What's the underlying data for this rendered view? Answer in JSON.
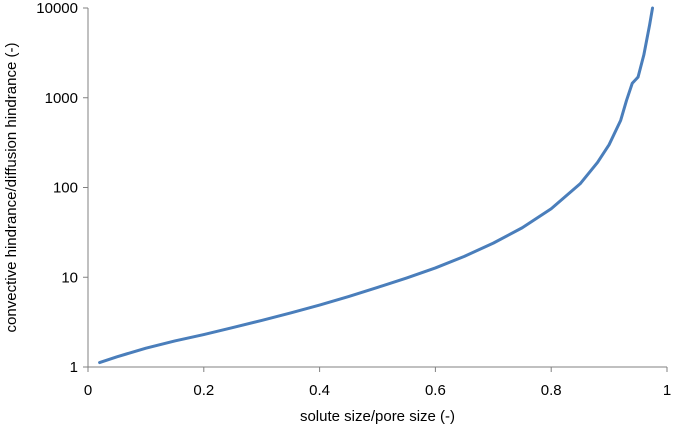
{
  "chart_data": {
    "type": "line",
    "title": "",
    "xlabel": "solute size/pore size (-)",
    "ylabel": "convective hindrance/diffusion hindrance (-)",
    "xlim": [
      0,
      1
    ],
    "ylim": [
      1,
      10000
    ],
    "yscale": "log",
    "grid": false,
    "legend": "none",
    "x_ticks": [
      "0",
      "0.2",
      "0.4",
      "0.6",
      "0.8",
      "1"
    ],
    "y_ticks": [
      "1",
      "10",
      "100",
      "1000",
      "10000"
    ],
    "line_color": "#4a7ebb",
    "series": [
      {
        "x": [
          0.02,
          0.05,
          0.1,
          0.15,
          0.2,
          0.25,
          0.3,
          0.35,
          0.4,
          0.45,
          0.5,
          0.55,
          0.6,
          0.65,
          0.7,
          0.75,
          0.8,
          0.85,
          0.88,
          0.9,
          0.92,
          0.93,
          0.94,
          0.95,
          0.96,
          0.97,
          0.975
        ],
        "y": [
          1.12,
          1.3,
          1.62,
          1.95,
          2.3,
          2.75,
          3.3,
          4.0,
          4.9,
          6.1,
          7.7,
          9.8,
          12.7,
          17.1,
          24,
          35.6,
          58,
          110,
          190,
          300,
          560,
          930,
          1450,
          1700,
          3000,
          6500,
          10000
        ]
      }
    ]
  }
}
